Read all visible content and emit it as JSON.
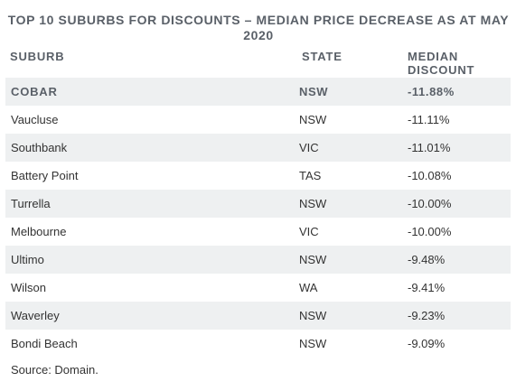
{
  "chart_data": {
    "type": "table",
    "title": "TOP 10 SUBURBS FOR DISCOUNTS – MEDIAN PRICE DECREASE AS AT MAY 2020",
    "columns": [
      "SUBURB",
      "STATE",
      "MEDIAN DISCOUNT"
    ],
    "rows": [
      {
        "suburb": "COBAR",
        "state": "NSW",
        "discount": "-11.88%"
      },
      {
        "suburb": "Vaucluse",
        "state": "NSW",
        "discount": "-11.11%"
      },
      {
        "suburb": "Southbank",
        "state": "VIC",
        "discount": "-11.01%"
      },
      {
        "suburb": "Battery Point",
        "state": "TAS",
        "discount": "-10.08%"
      },
      {
        "suburb": "Turrella",
        "state": "NSW",
        "discount": "-10.00%"
      },
      {
        "suburb": "Melbourne",
        "state": "VIC",
        "discount": "-10.00%"
      },
      {
        "suburb": "Ultimo",
        "state": "NSW",
        "discount": "-9.48%"
      },
      {
        "suburb": "Wilson",
        "state": "WA",
        "discount": "-9.41%"
      },
      {
        "suburb": "Waverley",
        "state": "NSW",
        "discount": "-9.23%"
      },
      {
        "suburb": "Bondi Beach",
        "state": "NSW",
        "discount": "-9.09%"
      }
    ],
    "values": [
      -11.88,
      -11.11,
      -11.01,
      -10.08,
      -10.0,
      -10.0,
      -9.48,
      -9.41,
      -9.23,
      -9.09
    ],
    "source": "Source: Domain."
  },
  "colors": {
    "header_text": "#5a6068",
    "body_text": "#333333",
    "row_shade": "#eef0f1"
  }
}
